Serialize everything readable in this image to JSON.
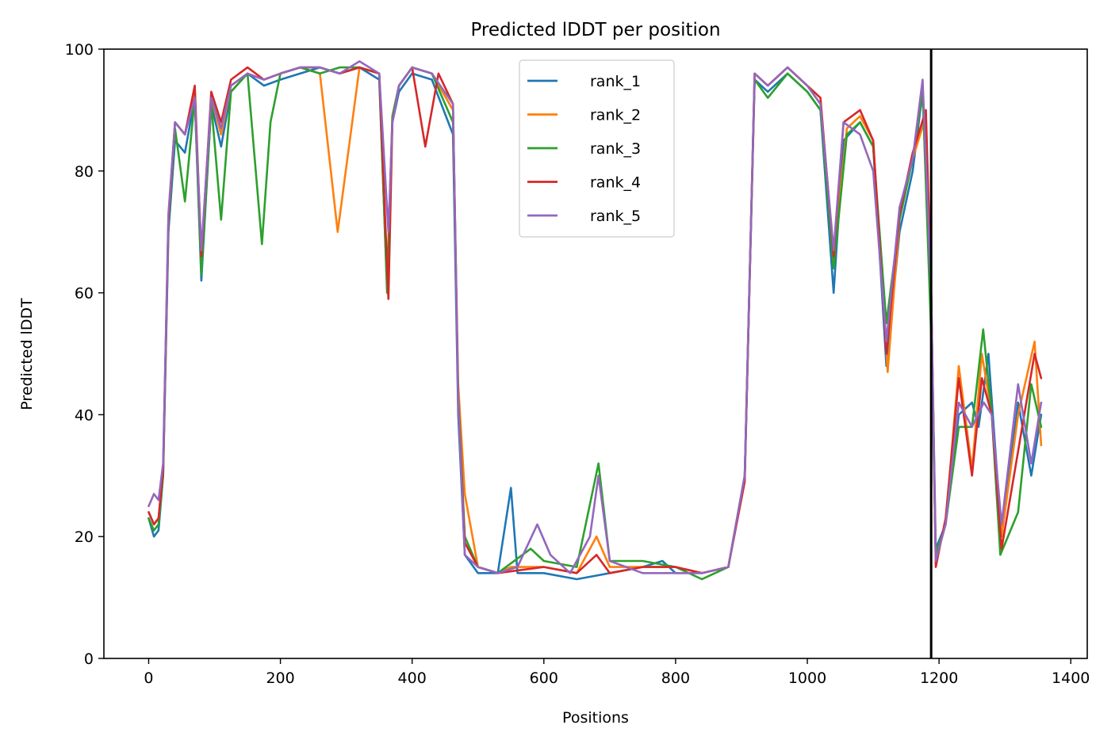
{
  "chart_data": {
    "type": "line",
    "title": "Predicted lDDT per position",
    "xlabel": "Positions",
    "ylabel": "Predicted lDDT",
    "xlim": [
      -68,
      1425
    ],
    "ylim": [
      0,
      100
    ],
    "xticks": [
      0,
      200,
      400,
      600,
      800,
      1000,
      1200,
      1400
    ],
    "yticks": [
      0,
      20,
      40,
      60,
      80,
      100
    ],
    "xtick_labels": [
      "0",
      "200",
      "400",
      "600",
      "800",
      "1000",
      "1200",
      "1400"
    ],
    "ytick_labels": [
      "0",
      "20",
      "40",
      "60",
      "80",
      "100"
    ],
    "grid": false,
    "legend_position": "top-center",
    "chain_break_x": 1188,
    "chain_break_color": "#000000",
    "series": [
      {
        "name": "rank_1",
        "color": "#1f77b4",
        "x": [
          0,
          8,
          15,
          22,
          30,
          40,
          55,
          70,
          80,
          95,
          110,
          125,
          150,
          175,
          200,
          230,
          260,
          290,
          320,
          350,
          362,
          370,
          380,
          400,
          430,
          462,
          470,
          480,
          500,
          530,
          550,
          560,
          600,
          650,
          700,
          750,
          780,
          800,
          840,
          880,
          905,
          920,
          940,
          970,
          1000,
          1020,
          1040,
          1055,
          1080,
          1100,
          1120,
          1140,
          1160,
          1175,
          1188,
          1195,
          1210,
          1230,
          1250,
          1260,
          1275,
          1295,
          1320,
          1340,
          1355
        ],
        "y": [
          23,
          20,
          21,
          30,
          70,
          85,
          83,
          92,
          62,
          91,
          84,
          93,
          96,
          94,
          95,
          96,
          97,
          96,
          97,
          95,
          61,
          88,
          93,
          96,
          95,
          86,
          40,
          17,
          14,
          14,
          28,
          14,
          14,
          13,
          14,
          15,
          16,
          14,
          14,
          15,
          30,
          95,
          93,
          96,
          93,
          90,
          60,
          85,
          88,
          84,
          48,
          70,
          80,
          93,
          60,
          18,
          22,
          40,
          42,
          38,
          50,
          20,
          42,
          30,
          40
        ]
      },
      {
        "name": "rank_2",
        "color": "#ff7f0e",
        "x": [
          0,
          8,
          15,
          22,
          30,
          40,
          55,
          70,
          80,
          95,
          110,
          125,
          150,
          175,
          200,
          230,
          260,
          287,
          320,
          350,
          362,
          370,
          380,
          400,
          430,
          462,
          470,
          480,
          500,
          530,
          550,
          600,
          650,
          680,
          700,
          750,
          800,
          840,
          880,
          905,
          920,
          940,
          970,
          1000,
          1020,
          1040,
          1060,
          1080,
          1100,
          1122,
          1140,
          1160,
          1180,
          1188,
          1195,
          1210,
          1230,
          1250,
          1265,
          1280,
          1295,
          1320,
          1345,
          1355
        ],
        "y": [
          24,
          22,
          23,
          31,
          72,
          88,
          86,
          93,
          65,
          92,
          86,
          94,
          96,
          95,
          96,
          97,
          96,
          70,
          97,
          96,
          62,
          89,
          94,
          97,
          96,
          90,
          45,
          27,
          15,
          14,
          15,
          15,
          14,
          20,
          15,
          15,
          15,
          14,
          15,
          30,
          96,
          94,
          97,
          94,
          91,
          66,
          87,
          89,
          85,
          47,
          72,
          82,
          89,
          58,
          17,
          22,
          48,
          31,
          50,
          40,
          20,
          40,
          52,
          35
        ]
      },
      {
        "name": "rank_3",
        "color": "#2ca02c",
        "x": [
          0,
          8,
          15,
          22,
          30,
          40,
          55,
          70,
          80,
          95,
          110,
          125,
          150,
          172,
          185,
          200,
          230,
          260,
          290,
          320,
          350,
          362,
          370,
          380,
          400,
          430,
          462,
          470,
          480,
          500,
          530,
          580,
          600,
          650,
          683,
          700,
          750,
          800,
          840,
          880,
          905,
          920,
          940,
          970,
          1000,
          1020,
          1040,
          1060,
          1080,
          1100,
          1120,
          1140,
          1160,
          1175,
          1188,
          1195,
          1210,
          1230,
          1250,
          1267,
          1280,
          1293,
          1320,
          1340,
          1355
        ],
        "y": [
          23,
          21,
          22,
          30,
          71,
          87,
          75,
          92,
          63,
          91,
          72,
          93,
          96,
          68,
          88,
          96,
          97,
          96,
          97,
          97,
          96,
          60,
          89,
          94,
          97,
          96,
          88,
          43,
          20,
          15,
          14,
          18,
          16,
          15,
          32,
          16,
          16,
          15,
          13,
          15,
          30,
          95,
          92,
          96,
          93,
          90,
          64,
          86,
          88,
          84,
          55,
          72,
          82,
          93,
          53,
          17,
          22,
          38,
          38,
          54,
          40,
          17,
          24,
          45,
          38
        ]
      },
      {
        "name": "rank_4",
        "color": "#d62728",
        "x": [
          0,
          8,
          15,
          22,
          30,
          40,
          55,
          70,
          80,
          95,
          110,
          125,
          150,
          175,
          200,
          230,
          260,
          290,
          320,
          350,
          364,
          370,
          380,
          400,
          420,
          440,
          462,
          470,
          480,
          500,
          530,
          600,
          650,
          680,
          700,
          750,
          800,
          840,
          880,
          905,
          920,
          940,
          970,
          1000,
          1020,
          1040,
          1055,
          1080,
          1100,
          1120,
          1140,
          1160,
          1180,
          1188,
          1195,
          1210,
          1230,
          1250,
          1265,
          1280,
          1295,
          1320,
          1345,
          1355
        ],
        "y": [
          24,
          22,
          23,
          31,
          72,
          88,
          86,
          94,
          66,
          93,
          88,
          95,
          97,
          95,
          96,
          97,
          97,
          96,
          97,
          96,
          59,
          88,
          94,
          97,
          84,
          96,
          91,
          42,
          19,
          15,
          14,
          15,
          14,
          17,
          14,
          15,
          15,
          14,
          15,
          29,
          96,
          94,
          97,
          94,
          92,
          66,
          88,
          90,
          85,
          50,
          73,
          83,
          90,
          60,
          15,
          23,
          46,
          30,
          46,
          40,
          18,
          34,
          50,
          46
        ]
      },
      {
        "name": "rank_5",
        "color": "#9467bd",
        "x": [
          0,
          8,
          15,
          22,
          30,
          40,
          55,
          70,
          80,
          95,
          110,
          125,
          150,
          175,
          200,
          230,
          260,
          290,
          320,
          350,
          364,
          370,
          380,
          400,
          430,
          462,
          470,
          480,
          500,
          530,
          560,
          590,
          610,
          640,
          670,
          683,
          700,
          750,
          800,
          840,
          880,
          905,
          920,
          940,
          970,
          1000,
          1020,
          1040,
          1055,
          1080,
          1100,
          1120,
          1140,
          1160,
          1175,
          1188,
          1195,
          1210,
          1230,
          1250,
          1268,
          1280,
          1295,
          1320,
          1340,
          1355
        ],
        "y": [
          25,
          27,
          26,
          32,
          73,
          88,
          86,
          92,
          67,
          92,
          87,
          94,
          96,
          95,
          96,
          97,
          97,
          96,
          98,
          96,
          70,
          88,
          94,
          97,
          96,
          91,
          42,
          17,
          15,
          14,
          15,
          22,
          17,
          14,
          20,
          30,
          16,
          14,
          14,
          14,
          15,
          30,
          96,
          94,
          97,
          94,
          91,
          67,
          88,
          86,
          80,
          52,
          74,
          82,
          95,
          60,
          16,
          22,
          42,
          38,
          42,
          40,
          22,
          45,
          32,
          42
        ]
      }
    ]
  }
}
